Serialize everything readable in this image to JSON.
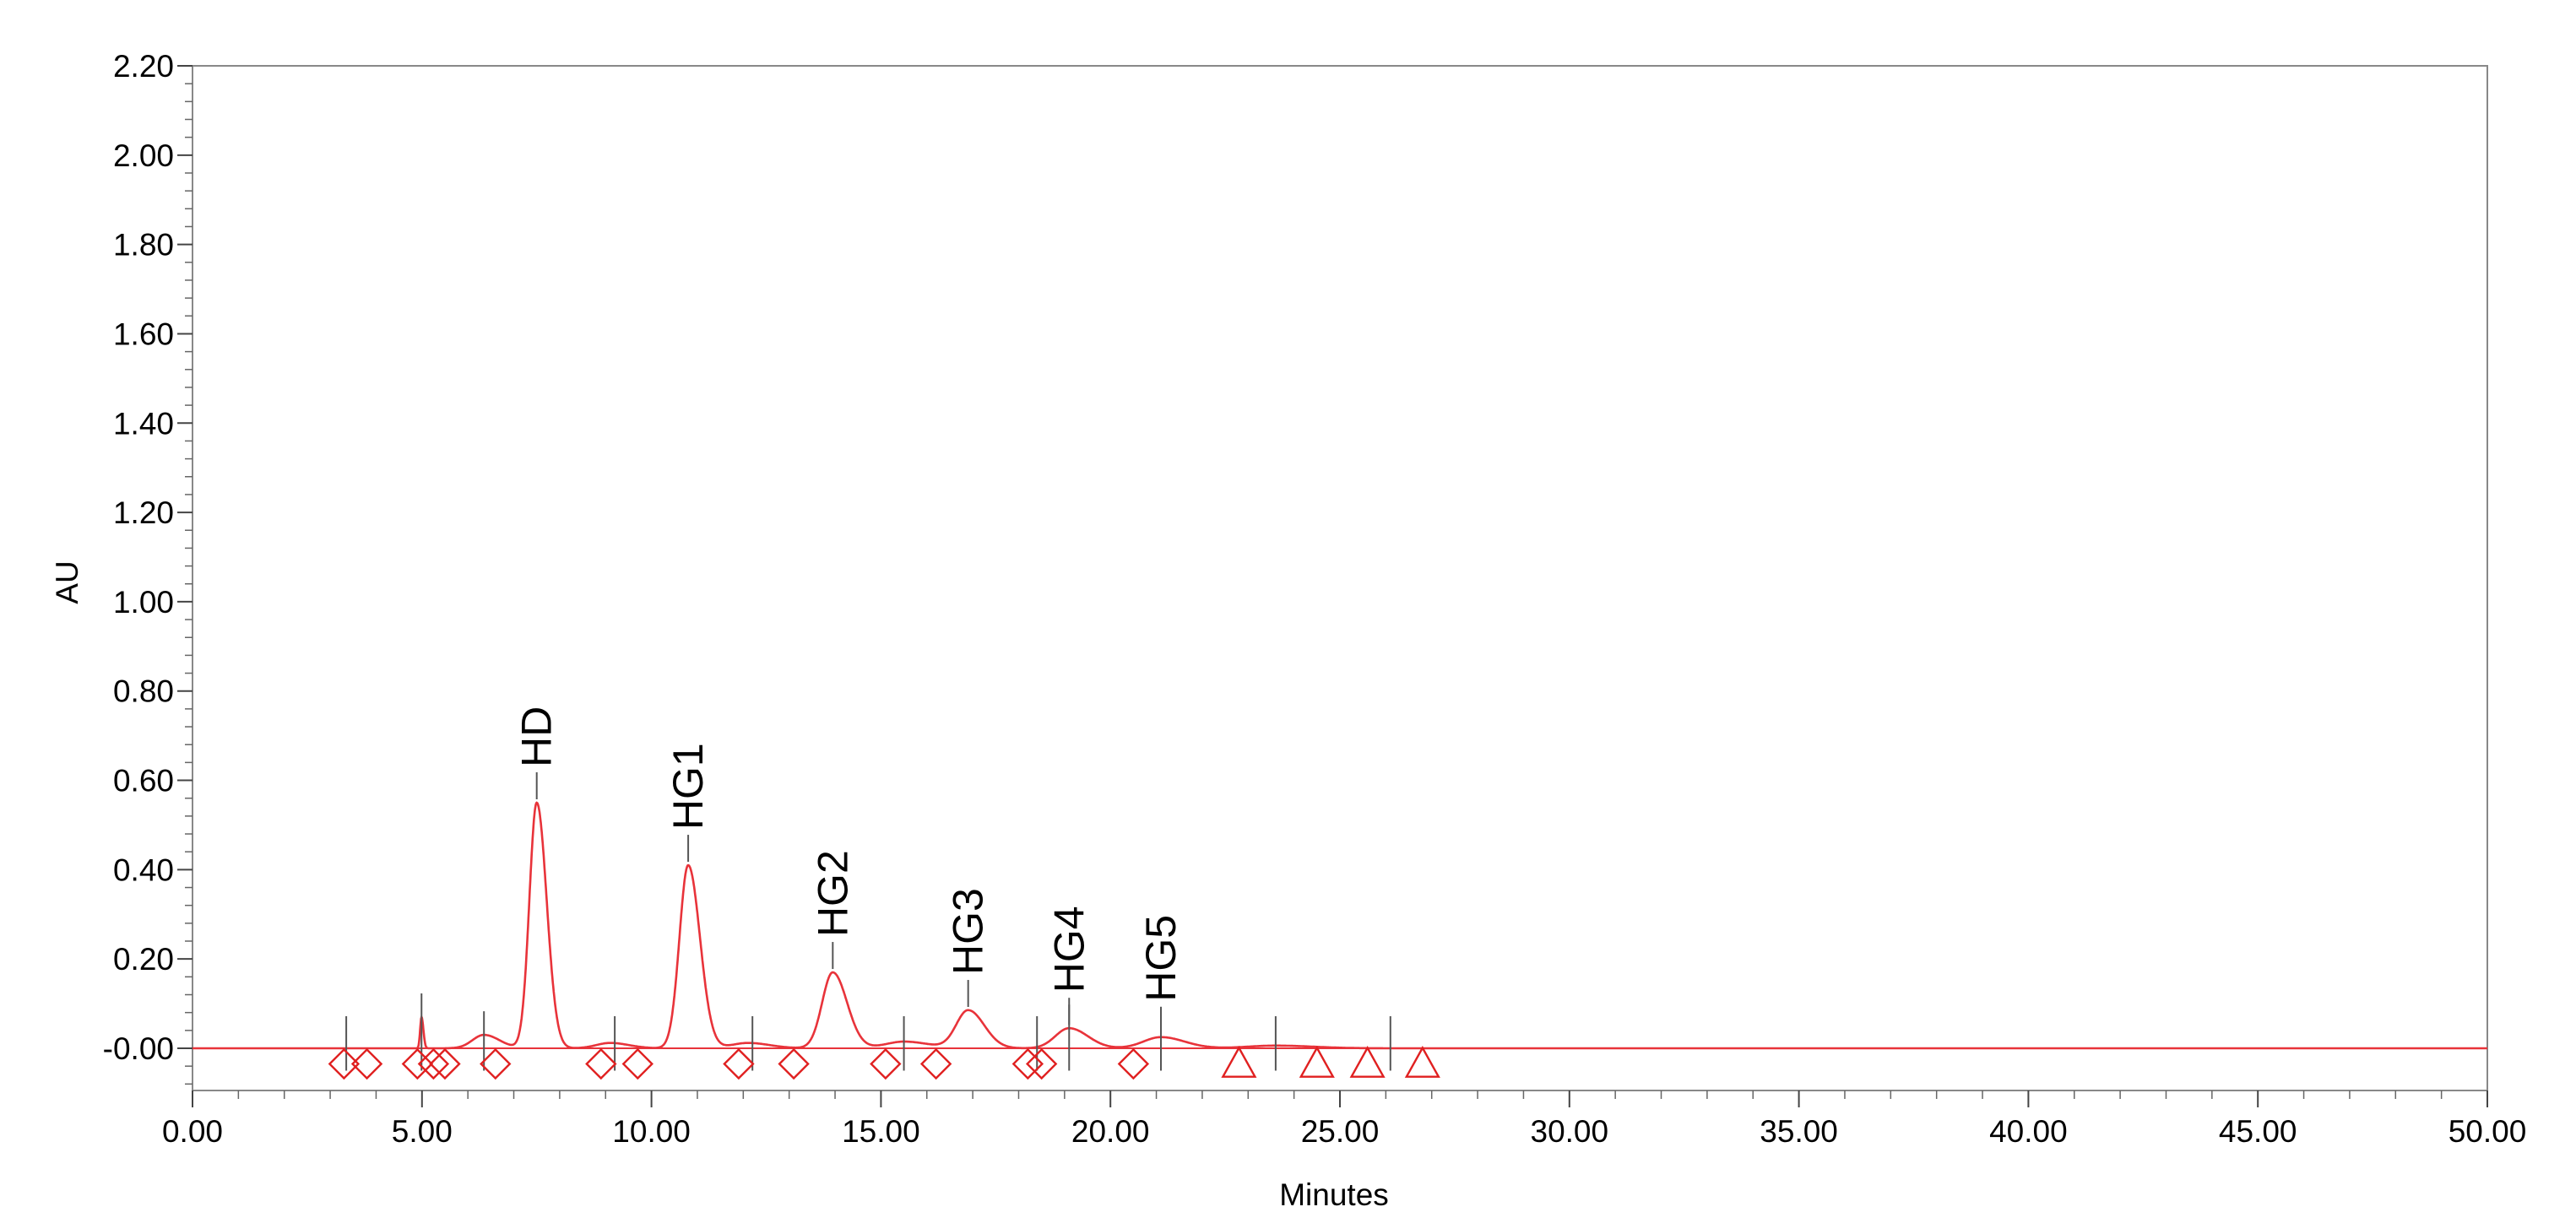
{
  "chart_data": {
    "type": "line",
    "title": "",
    "xlabel": "Minutes",
    "ylabel": "AU",
    "xlim": [
      0,
      50
    ],
    "ylim": [
      -0.1,
      2.2
    ],
    "x_ticks": [
      "0.00",
      "5.00",
      "10.00",
      "15.00",
      "20.00",
      "25.00",
      "30.00",
      "35.00",
      "40.00",
      "45.00",
      "50.00"
    ],
    "y_ticks": [
      "-0.00",
      "0.20",
      "0.40",
      "0.60",
      "0.80",
      "1.00",
      "1.20",
      "1.40",
      "1.60",
      "1.80",
      "2.00",
      "2.20"
    ],
    "line_color": "#e8333a",
    "marker_color": "#e02020",
    "series": [
      {
        "peaks": [
          {
            "rt": 4.99,
            "height": 0.07,
            "sigma": 0.03
          },
          {
            "rt": 6.35,
            "height": 0.03,
            "sigma": 0.25
          },
          {
            "rt": 7.5,
            "height": 0.55,
            "sigma": 0.16
          },
          {
            "rt": 9.1,
            "height": 0.012,
            "sigma": 0.3
          },
          {
            "rt": 10.8,
            "height": 0.41,
            "sigma": 0.19
          },
          {
            "rt": 12.1,
            "height": 0.012,
            "sigma": 0.35
          },
          {
            "rt": 13.95,
            "height": 0.17,
            "sigma": 0.23
          },
          {
            "rt": 15.5,
            "height": 0.015,
            "sigma": 0.4
          },
          {
            "rt": 16.9,
            "height": 0.085,
            "sigma": 0.26
          },
          {
            "rt": 19.1,
            "height": 0.045,
            "sigma": 0.3
          },
          {
            "rt": 21.1,
            "height": 0.025,
            "sigma": 0.38
          },
          {
            "rt": 23.6,
            "height": 0.006,
            "sigma": 0.6
          }
        ]
      }
    ],
    "peak_labels": [
      {
        "text": "HD",
        "rt": 7.5,
        "height": 0.55
      },
      {
        "text": "HG1",
        "rt": 10.8,
        "height": 0.41
      },
      {
        "text": "HG2",
        "rt": 13.95,
        "height": 0.17
      },
      {
        "text": "HG3",
        "rt": 16.9,
        "height": 0.085
      },
      {
        "text": "HG4",
        "rt": 19.1,
        "height": 0.045
      },
      {
        "text": "HG5",
        "rt": 21.1,
        "height": 0.025
      }
    ],
    "integration_marks": [
      3.35,
      4.99,
      6.35,
      9.2,
      12.2,
      15.5,
      18.4,
      19.1,
      21.1,
      23.6,
      26.1
    ],
    "diamond_markers": [
      3.3,
      3.8,
      4.9,
      5.25,
      5.5,
      6.6,
      8.9,
      9.7,
      11.9,
      13.1,
      15.1,
      16.2,
      18.2,
      18.5,
      20.5
    ],
    "triangle_markers": [
      22.8,
      24.5,
      25.6,
      26.8
    ],
    "marker_y": -0.035
  }
}
